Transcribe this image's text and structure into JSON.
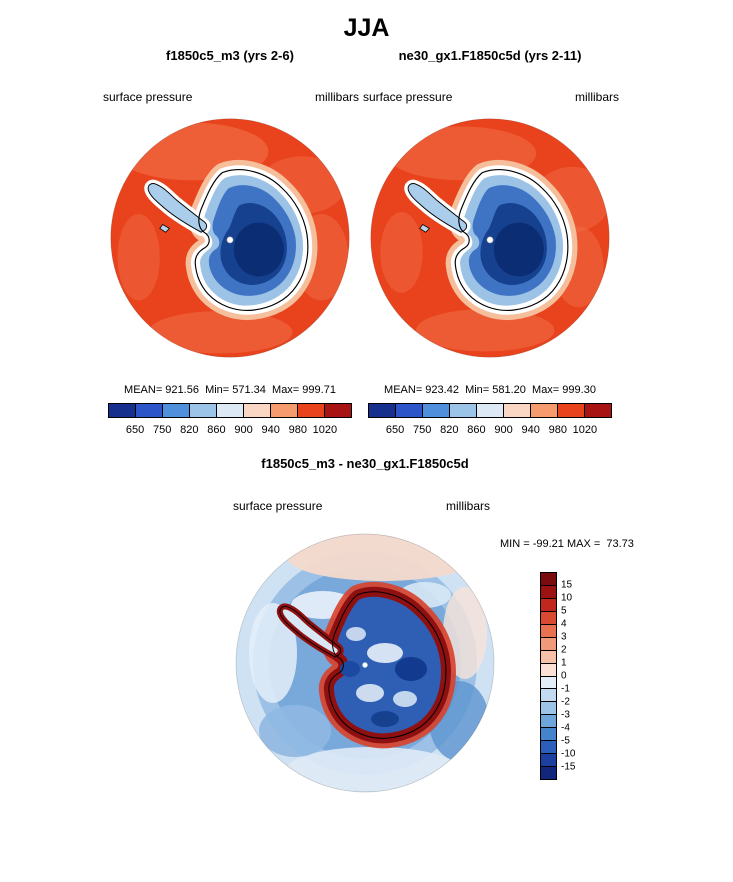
{
  "page": {
    "title": "JJA"
  },
  "panels": {
    "left": {
      "title": "f1850c5_m3 (yrs 2-6)",
      "field_label": "surface pressure",
      "units_label": "millibars",
      "stats": "MEAN= 921.56  Min= 571.34  Max= 999.71"
    },
    "right": {
      "title": "ne30_gx1.F1850c5d (yrs 2-11)",
      "field_label": "surface pressure",
      "units_label": "millibars",
      "stats": "MEAN= 923.42  Min= 581.20  Max= 999.30"
    },
    "diff": {
      "title": "f1850c5_m3 - ne30_gx1.F1850c5d",
      "field_label": "surface pressure",
      "units_label": "millibars",
      "stats": "MIN = -99.21 MAX =  73.73"
    }
  },
  "chart_data": [
    {
      "type": "heatmap",
      "projection": "south polar stereographic",
      "season": "JJA",
      "title": "f1850c5_m3 (yrs 2-6)",
      "variable": "surface pressure",
      "units": "millibars",
      "mean": 921.56,
      "min": 571.34,
      "max": 999.71,
      "colorbar_levels": [
        650,
        750,
        820,
        860,
        900,
        940,
        980,
        1020
      ],
      "colorbar_colors": [
        "#172f8d",
        "#2b55c8",
        "#4f8fdc",
        "#9cc4e8",
        "#ddeaf6",
        "#f9d7c4",
        "#f59b6e",
        "#e8431d",
        "#a81414"
      ],
      "legend_position": "below"
    },
    {
      "type": "heatmap",
      "projection": "south polar stereographic",
      "season": "JJA",
      "title": "ne30_gx1.F1850c5d (yrs 2-11)",
      "variable": "surface pressure",
      "units": "millibars",
      "mean": 923.42,
      "min": 581.2,
      "max": 999.3,
      "colorbar_levels": [
        650,
        750,
        820,
        860,
        900,
        940,
        980,
        1020
      ],
      "colorbar_colors": [
        "#172f8d",
        "#2b55c8",
        "#4f8fdc",
        "#9cc4e8",
        "#ddeaf6",
        "#f9d7c4",
        "#f59b6e",
        "#e8431d",
        "#a81414"
      ],
      "legend_position": "below"
    },
    {
      "type": "heatmap",
      "projection": "south polar stereographic",
      "season": "JJA",
      "title": "f1850c5_m3 - ne30_gx1.F1850c5d",
      "variable": "surface pressure",
      "units": "millibars",
      "min": -99.21,
      "max": 73.73,
      "colorbar_levels": [
        15,
        10,
        5,
        4,
        3,
        2,
        1,
        0,
        -1,
        -2,
        -3,
        -4,
        -5,
        -10,
        -15
      ],
      "colorbar_colors": [
        "#7a0c10",
        "#9c1212",
        "#c0281f",
        "#d94a32",
        "#e8714f",
        "#f2997a",
        "#f7c0a8",
        "#fbe0d4",
        "#e4eef8",
        "#c3daf0",
        "#9cc4e8",
        "#6ea6dc",
        "#4584cc",
        "#2b5fbb",
        "#1c3fa0",
        "#12267c"
      ],
      "legend_position": "right"
    }
  ]
}
